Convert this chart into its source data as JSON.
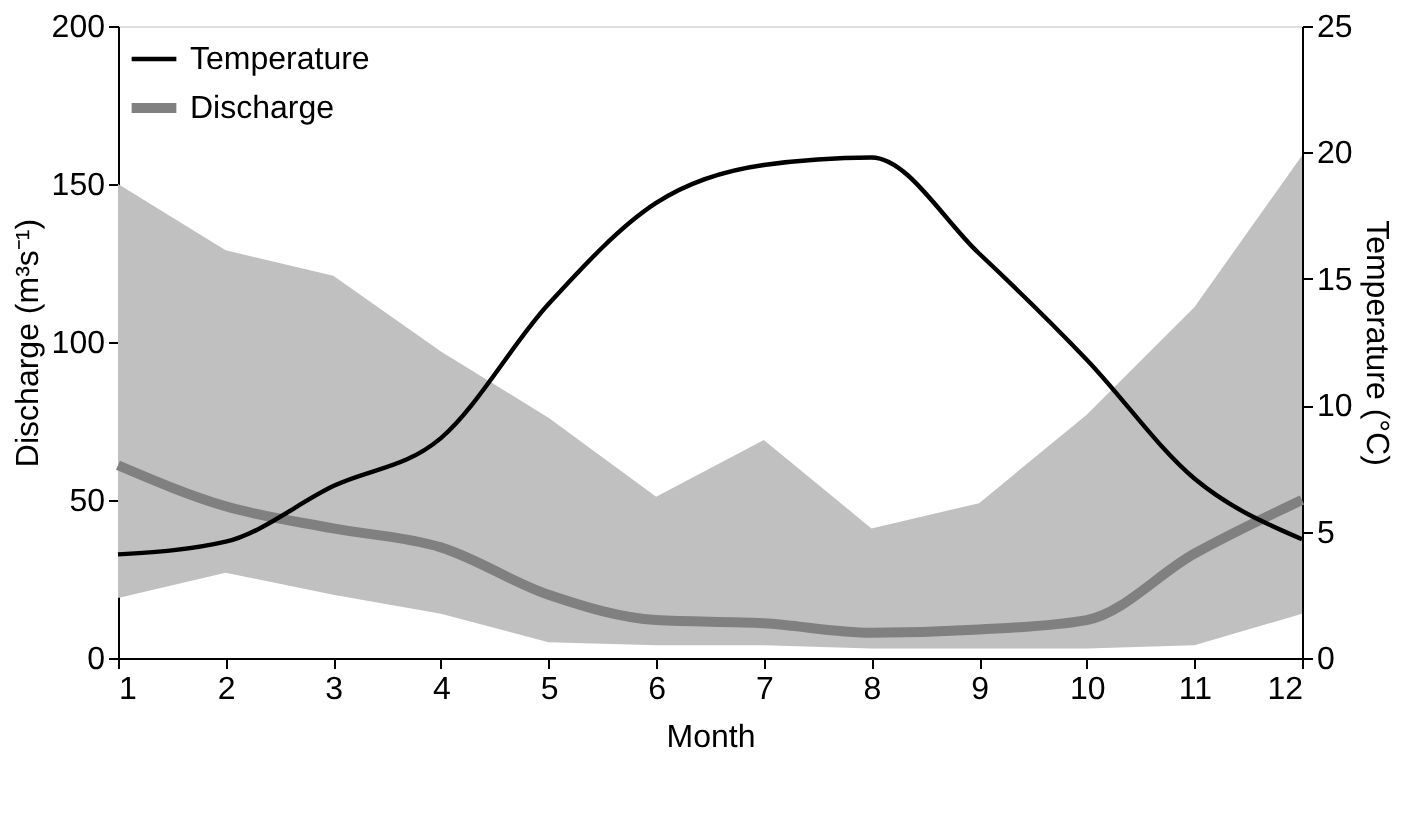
{
  "chart_data": {
    "type": "line",
    "xlabel": "Month",
    "ylabel": "Discharge (m³s⁻¹)",
    "y2label": "Temperature (°C)",
    "x": [
      1,
      2,
      3,
      4,
      5,
      6,
      7,
      8,
      9,
      10,
      11,
      12
    ],
    "series": [
      {
        "name": "Temperature",
        "color": "#000000",
        "axis": "y2",
        "values": [
          4.1,
          4.6,
          6.8,
          8.7,
          14,
          18,
          19.5,
          19.8,
          16,
          11.8,
          7.1,
          4.7
        ]
      },
      {
        "name": "Discharge",
        "color": "#808080",
        "values": [
          61,
          48,
          41,
          35,
          20,
          12,
          11,
          8,
          9,
          12,
          33,
          50
        ],
        "lower": [
          19,
          27,
          20,
          14,
          5,
          4,
          4,
          3,
          3,
          3,
          4,
          14
        ],
        "upper": [
          150,
          129,
          121,
          97,
          76,
          51,
          69,
          41,
          49,
          77,
          111,
          159
        ]
      }
    ],
    "xlim": [
      1,
      12
    ],
    "xticks": [
      1,
      2,
      3,
      4,
      5,
      6,
      7,
      8,
      9,
      10,
      11,
      12
    ],
    "ylim": [
      0,
      200
    ],
    "yticks": [
      0,
      50,
      100,
      150,
      200
    ],
    "y2lim": [
      0,
      25
    ],
    "y2ticks": [
      0,
      5,
      10,
      15,
      20,
      25
    ],
    "grid": false,
    "legend": "top left",
    "marker": "none",
    "line_style": "solid"
  }
}
